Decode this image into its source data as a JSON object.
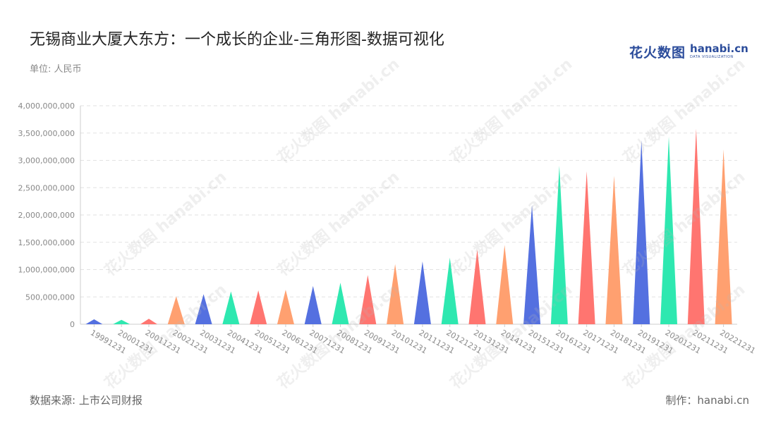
{
  "title": "无锡商业大厦大东方：一个成长的企业-三角形图-数据可视化",
  "unit": "单位: 人民币",
  "logo": {
    "cn": "花火数图",
    "en": "hanabi.cn",
    "sub": "DATA VISUALIZATION"
  },
  "source": "数据来源: 上市公司财报",
  "maker": "制作：hanabi.cn",
  "watermark": "花火数图 hanabi.cn",
  "colors": [
    "#5470e0",
    "#2ee8b0",
    "#ff7570",
    "#ffa070"
  ],
  "chart_data": {
    "type": "bar",
    "style": "triangle",
    "grid": true,
    "ylim": [
      0,
      4000000000
    ],
    "yticks": [
      "4,000,000,000",
      "3,500,000,000",
      "3,000,000,000",
      "2,500,000,000",
      "2,000,000,000",
      "1,500,000,000",
      "1,000,000,000",
      "500,000,000",
      "0"
    ],
    "categories": [
      "19991231",
      "20001231",
      "20011231",
      "20021231",
      "20031231",
      "20041231",
      "20051231",
      "20061231",
      "20071231",
      "20081231",
      "20091231",
      "20101231",
      "20111231",
      "20121231",
      "20131231",
      "20141231",
      "20151231",
      "20161231",
      "20171231",
      "20181231",
      "20191231",
      "20201231",
      "20211231",
      "20221231"
    ],
    "values": [
      90000000,
      80000000,
      100000000,
      510000000,
      550000000,
      600000000,
      620000000,
      630000000,
      700000000,
      760000000,
      900000000,
      1100000000,
      1150000000,
      1220000000,
      1370000000,
      1450000000,
      2180000000,
      2900000000,
      2800000000,
      2720000000,
      3370000000,
      3430000000,
      3580000000,
      3200000000
    ]
  }
}
